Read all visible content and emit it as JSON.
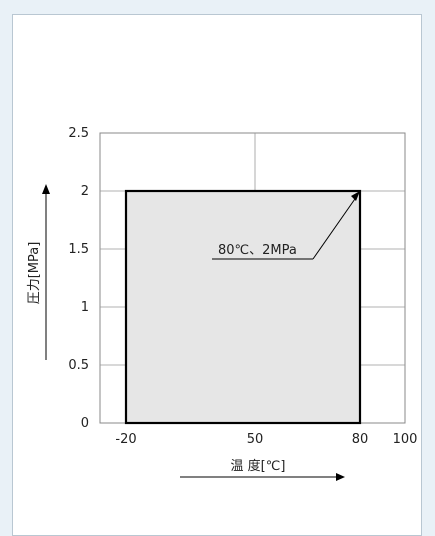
{
  "chart_data": {
    "type": "area",
    "xlabel": "温 度[℃]",
    "ylabel": "圧力[MPa]",
    "x_ticks": [
      -20,
      50,
      80,
      100
    ],
    "y_ticks": [
      0,
      0.5,
      1,
      1.5,
      2,
      2.5
    ],
    "x_tick_labels": [
      "-20",
      "50",
      "80",
      "100"
    ],
    "y_tick_labels": [
      "0",
      "0.5",
      "1",
      "1.5",
      "2",
      "2.5"
    ],
    "region": {
      "x": [
        -20,
        80
      ],
      "y": [
        0,
        2
      ]
    },
    "annotation": {
      "text": "80℃、2MPa",
      "x": 80,
      "y": 2
    },
    "grid": true,
    "colors": {
      "fill": "#e6e6e6",
      "boundary": "#000000",
      "grid": "#999999"
    }
  }
}
